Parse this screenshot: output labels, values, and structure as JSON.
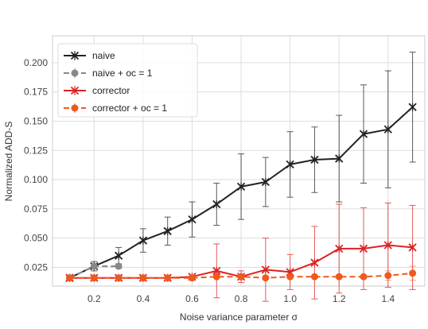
{
  "chart_data": {
    "type": "line",
    "xlabel": "Noise variance parameter σ",
    "ylabel": "Normalized ADD-S",
    "xlim": [
      0.03,
      1.55
    ],
    "ylim": [
      0.009,
      0.223
    ],
    "x_ticks": [
      0.2,
      0.4,
      0.6,
      0.8,
      1.0,
      1.2,
      1.4
    ],
    "x_tick_labels": [
      "0.2",
      "0.4",
      "0.6",
      "0.8",
      "1.0",
      "1.2",
      "1.4"
    ],
    "y_ticks": [
      0.025,
      0.05,
      0.075,
      0.1,
      0.125,
      0.15,
      0.175,
      0.2
    ],
    "y_tick_labels": [
      "0.025",
      "0.050",
      "0.075",
      "0.100",
      "0.125",
      "0.150",
      "0.175",
      "0.200"
    ],
    "grid": true,
    "legend_position": "top-left",
    "series": [
      {
        "name": "naive",
        "color": "#222222",
        "line_style": "solid",
        "marker": "x",
        "x": [
          0.1,
          0.2,
          0.3,
          0.4,
          0.5,
          0.6,
          0.7,
          0.8,
          0.9,
          1.0,
          1.1,
          1.2,
          1.3,
          1.4,
          1.5
        ],
        "y": [
          0.016,
          0.026,
          0.035,
          0.048,
          0.056,
          0.066,
          0.079,
          0.094,
          0.098,
          0.113,
          0.117,
          0.118,
          0.139,
          0.143,
          0.162
        ],
        "err": [
          0.0,
          0.004,
          0.007,
          0.01,
          0.012,
          0.015,
          0.018,
          0.028,
          0.021,
          0.028,
          0.028,
          0.037,
          0.042,
          0.05,
          0.047
        ]
      },
      {
        "name": "naive + oc = 1",
        "color": "#888888",
        "line_style": "dashed",
        "marker": "o",
        "x": [
          0.1,
          0.2,
          0.3
        ],
        "y": [
          0.016,
          0.026,
          0.026
        ],
        "err": [
          0.0,
          0.002,
          0.002
        ]
      },
      {
        "name": "corrector",
        "color": "#dd2222",
        "line_style": "solid",
        "marker": "x",
        "x": [
          0.1,
          0.2,
          0.3,
          0.4,
          0.5,
          0.6,
          0.7,
          0.8,
          0.9,
          1.0,
          1.1,
          1.2,
          1.3,
          1.4,
          1.5
        ],
        "y": [
          0.016,
          0.016,
          0.016,
          0.016,
          0.016,
          0.017,
          0.022,
          0.017,
          0.023,
          0.021,
          0.029,
          0.041,
          0.041,
          0.044,
          0.042
        ],
        "err": [
          0.0,
          0.0,
          0.0,
          0.0,
          0.0,
          0.0,
          0.023,
          0.005,
          0.027,
          0.015,
          0.031,
          0.038,
          0.035,
          0.036,
          0.036
        ]
      },
      {
        "name": "corrector + oc = 1",
        "color": "#ee5a1e",
        "line_style": "dashed",
        "marker": "o",
        "x": [
          0.1,
          0.2,
          0.3,
          0.4,
          0.5,
          0.6,
          0.7,
          0.8,
          0.9,
          1.0,
          1.1,
          1.2,
          1.3,
          1.4,
          1.5
        ],
        "y": [
          0.016,
          0.016,
          0.016,
          0.016,
          0.016,
          0.016,
          0.017,
          0.017,
          0.016,
          0.017,
          0.017,
          0.017,
          0.017,
          0.018,
          0.02
        ],
        "err": [
          0.0,
          0.0,
          0.0,
          0.0,
          0.0,
          0.0,
          0.0,
          0.0,
          0.0,
          0.0,
          0.0,
          0.0,
          0.0,
          0.004,
          0.006
        ]
      }
    ]
  }
}
